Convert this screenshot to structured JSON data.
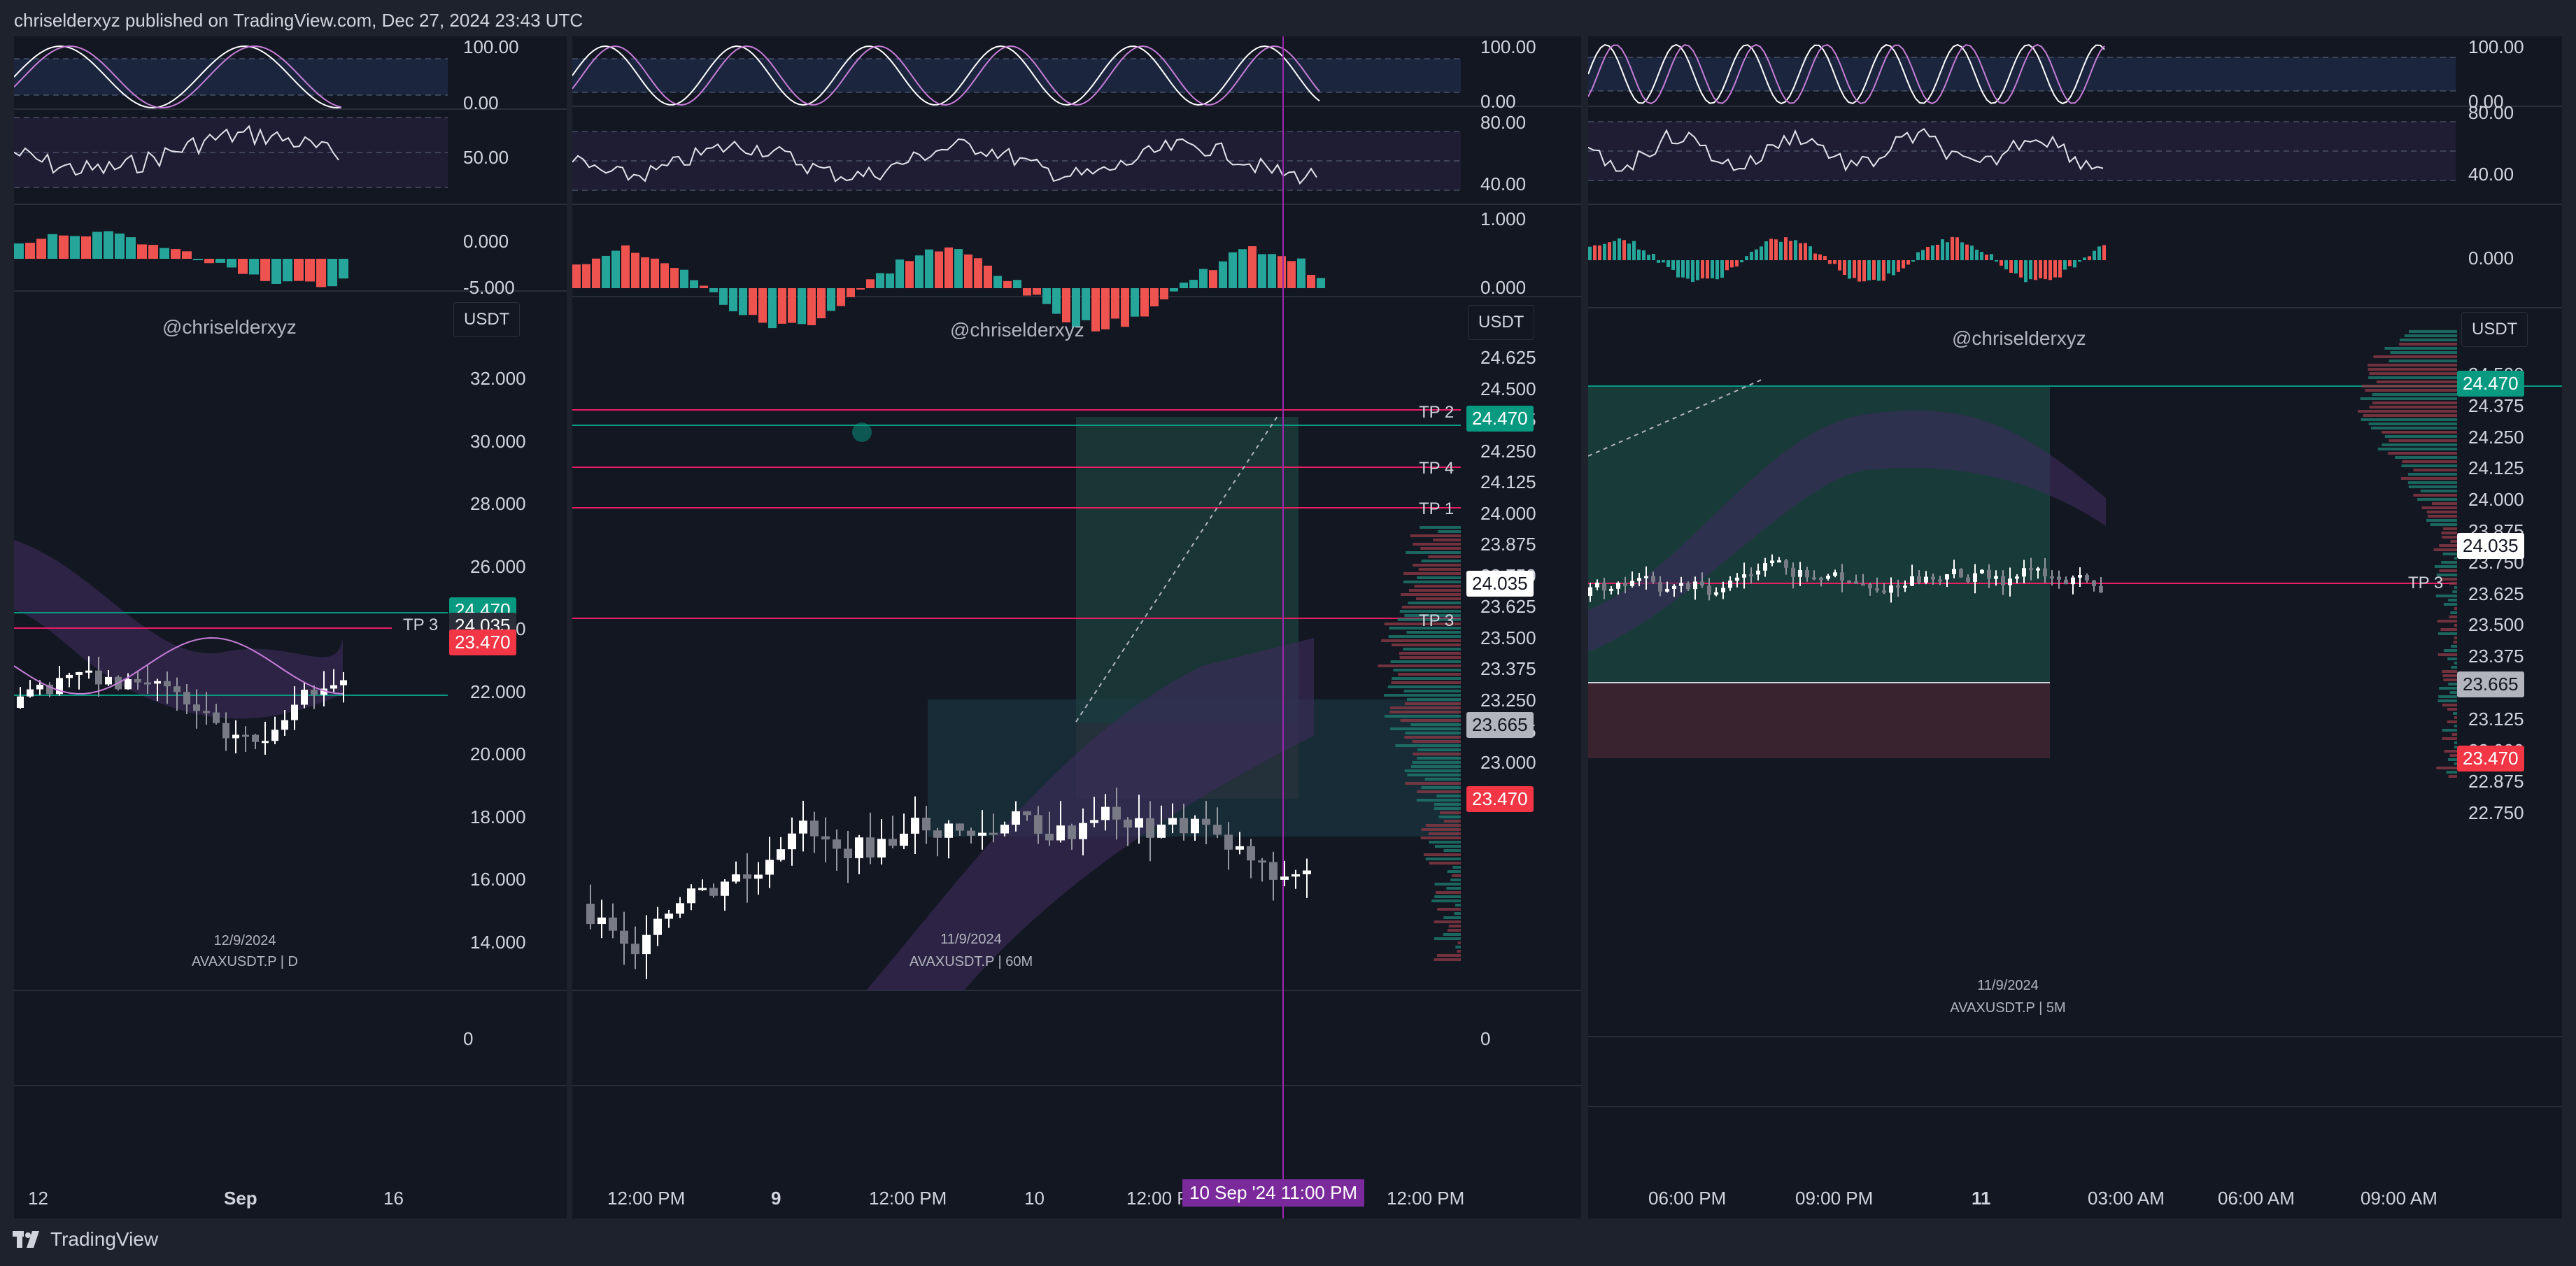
{
  "header": "chriselderxyz published on TradingView.com, Dec 27, 2024 23:43 UTC",
  "footer": {
    "brand": "TradingView",
    "logo_icon": "tradingview-logo-icon"
  },
  "colors": {
    "bg": "#131722",
    "up": "#26a69a",
    "down": "#ef5350",
    "pink": "#e91e63",
    "purple": "#9c27b0",
    "teal": "#089981"
  },
  "panels": [
    {
      "watermark": "@chriselderxyz",
      "date": "12/9/2024",
      "symbol": "AVAXUSDT.P | D",
      "currency": "USDT",
      "osc1_scale": [
        "100.00",
        "0.00"
      ],
      "osc2_scale": [
        "50.00"
      ],
      "osc3_scale": [
        "0.000",
        "-5.000"
      ],
      "price_scale": [
        "32.000",
        "30.000",
        "28.000",
        "26.000",
        "24.000",
        "22.000",
        "20.000",
        "18.000",
        "16.000",
        "14.000"
      ],
      "volume_scale": "0",
      "time_axis": [
        "12",
        "Sep",
        "16"
      ],
      "tags": {
        "green": "24.470",
        "white": "24.035",
        "red": "23.470"
      },
      "tp_labels": [
        "TP 3"
      ]
    },
    {
      "watermark": "@chriselderxyz",
      "date": "11/9/2024",
      "symbol": "AVAXUSDT.P | 60M",
      "currency": "USDT",
      "osc1_scale": [
        "100.00",
        "0.00"
      ],
      "osc2_scale": [
        "80.00",
        "40.00"
      ],
      "osc3_scale": [
        "1.000",
        "0.000"
      ],
      "price_scale": [
        "24.625",
        "24.500",
        "24.375",
        "24.250",
        "24.125",
        "24.000",
        "23.875",
        "23.750",
        "23.625",
        "23.500",
        "23.375",
        "23.250",
        "23.125",
        "23.000"
      ],
      "volume_scale": "0",
      "time_axis": [
        "12:00 PM",
        "9",
        "12:00 PM",
        "10",
        "12:00 PM",
        "12:00 PM"
      ],
      "crosshair_time": "10 Sep '24  11:00 PM",
      "tags": {
        "green": "24.470",
        "white": "24.035",
        "grey": "23.665",
        "red": "23.470"
      },
      "tp_labels": [
        "TP 2",
        "TP 4",
        "TP 1",
        "TP 3"
      ]
    },
    {
      "watermark": "@chriselderxyz",
      "date": "11/9/2024",
      "symbol": "AVAXUSDT.P | 5M",
      "currency": "USDT",
      "osc1_scale": [
        "100.00",
        "0.00"
      ],
      "osc2_scale": [
        "80.00",
        "40.00"
      ],
      "osc3_scale": [
        "0.000"
      ],
      "price_scale": [
        "24.500",
        "24.375",
        "24.250",
        "24.125",
        "24.000",
        "23.875",
        "23.750",
        "23.625",
        "23.500",
        "23.375",
        "23.250",
        "23.125",
        "23.000",
        "22.875",
        "22.750"
      ],
      "time_axis": [
        "06:00 PM",
        "09:00 PM",
        "11",
        "03:00 AM",
        "06:00 AM",
        "09:00 AM"
      ],
      "tags": {
        "green": "24.470",
        "white": "24.035",
        "grey": "23.665",
        "red": "23.470"
      },
      "tp_labels": [
        "TP 3"
      ]
    }
  ]
}
